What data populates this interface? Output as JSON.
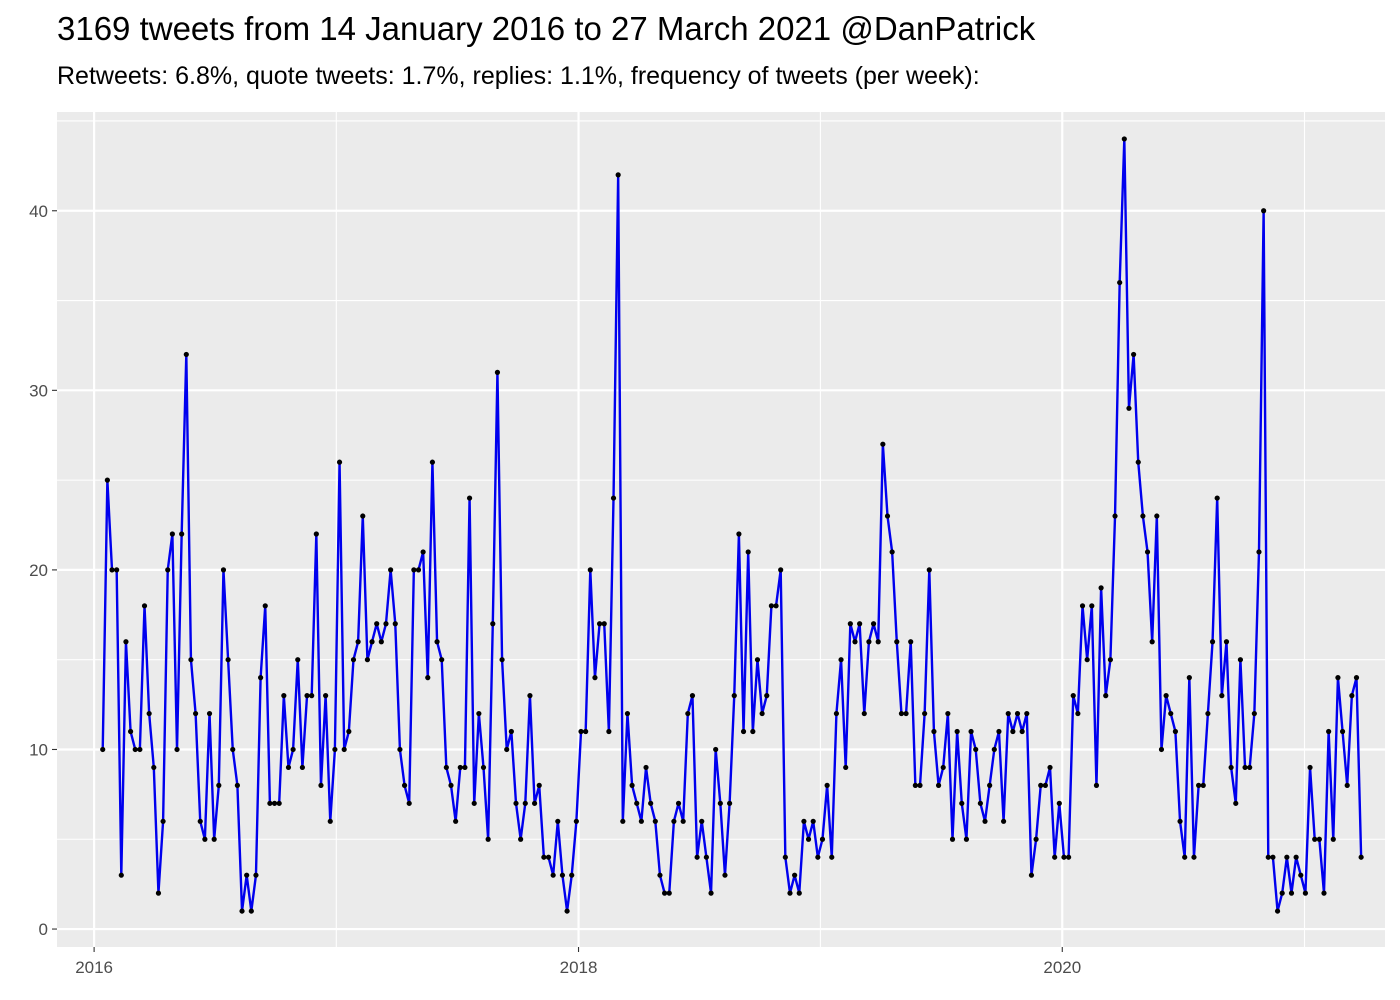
{
  "chart_data": {
    "type": "line",
    "title": "3169 tweets from 14 January 2016 to 27 March 2021 @DanPatrick",
    "subtitle": "Retweets: 6.8%, quote tweets: 1.7%, replies: 1.1%, frequency of tweets (per week):",
    "xlabel": "",
    "ylabel": "",
    "x_start": "2016-01-14",
    "x_end": "2021-03-27",
    "xlim": [
      "2015-11-06",
      "2021-05-02"
    ],
    "ylim": [
      -1,
      45.5
    ],
    "x_ticks": [
      {
        "date": "2016-01-01",
        "label": "2016"
      },
      {
        "date": "2018-01-01",
        "label": "2018"
      },
      {
        "date": "2020-01-01",
        "label": "2020"
      }
    ],
    "y_ticks": [
      0,
      10,
      20,
      30,
      40
    ],
    "line_color": "#0000ee",
    "point_color": "#000000",
    "panel_color": "#ebebeb",
    "grid": true,
    "series": [
      {
        "values": [
          10,
          25,
          20,
          20,
          3,
          16,
          11,
          10,
          10,
          18,
          12,
          9,
          2,
          6,
          20,
          22,
          10,
          22,
          32,
          15,
          12,
          6,
          5,
          12,
          5,
          8,
          20,
          15,
          10,
          8,
          1,
          3,
          1,
          3,
          14,
          18,
          7,
          7,
          7,
          13,
          9,
          10,
          15,
          9,
          13,
          13,
          22,
          8,
          13,
          6,
          10,
          26,
          10,
          11,
          15,
          16,
          23,
          15,
          16,
          17,
          16,
          17,
          20,
          17,
          10,
          8,
          7,
          20,
          20,
          21,
          14,
          26,
          16,
          15,
          9,
          8,
          6,
          9,
          9,
          24,
          7,
          12,
          9,
          5,
          17,
          31,
          15,
          10,
          11,
          7,
          5,
          7,
          13,
          7,
          8,
          4,
          4,
          3,
          6,
          3,
          1,
          3,
          6,
          11,
          11,
          20,
          14,
          17,
          17,
          11,
          24,
          42,
          6,
          12,
          8,
          7,
          6,
          9,
          7,
          6,
          3,
          2,
          2,
          6,
          7,
          6,
          12,
          13,
          4,
          6,
          4,
          2,
          10,
          7,
          3,
          7,
          13,
          22,
          11,
          21,
          11,
          15,
          12,
          13,
          18,
          18,
          20,
          4,
          2,
          3,
          2,
          6,
          5,
          6,
          4,
          5,
          8,
          4,
          12,
          15,
          9,
          17,
          16,
          17,
          12,
          16,
          17,
          16,
          27,
          23,
          21,
          16,
          12,
          12,
          16,
          8,
          8,
          12,
          20,
          11,
          8,
          9,
          12,
          5,
          11,
          7,
          5,
          11,
          10,
          7,
          6,
          8,
          10,
          11,
          6,
          12,
          11,
          12,
          11,
          12,
          3,
          5,
          8,
          8,
          9,
          4,
          7,
          4,
          4,
          13,
          12,
          18,
          15,
          18,
          8,
          19,
          13,
          15,
          23,
          36,
          44,
          29,
          32,
          26,
          23,
          21,
          16,
          23,
          10,
          13,
          12,
          11,
          6,
          4,
          14,
          4,
          8,
          8,
          12,
          16,
          24,
          13,
          16,
          9,
          7,
          15,
          9,
          9,
          12,
          21,
          40,
          4,
          4,
          1,
          2,
          4,
          2,
          4,
          3,
          2,
          9,
          5,
          5,
          2,
          11,
          5,
          14,
          11,
          8,
          13,
          14,
          4
        ]
      }
    ]
  }
}
